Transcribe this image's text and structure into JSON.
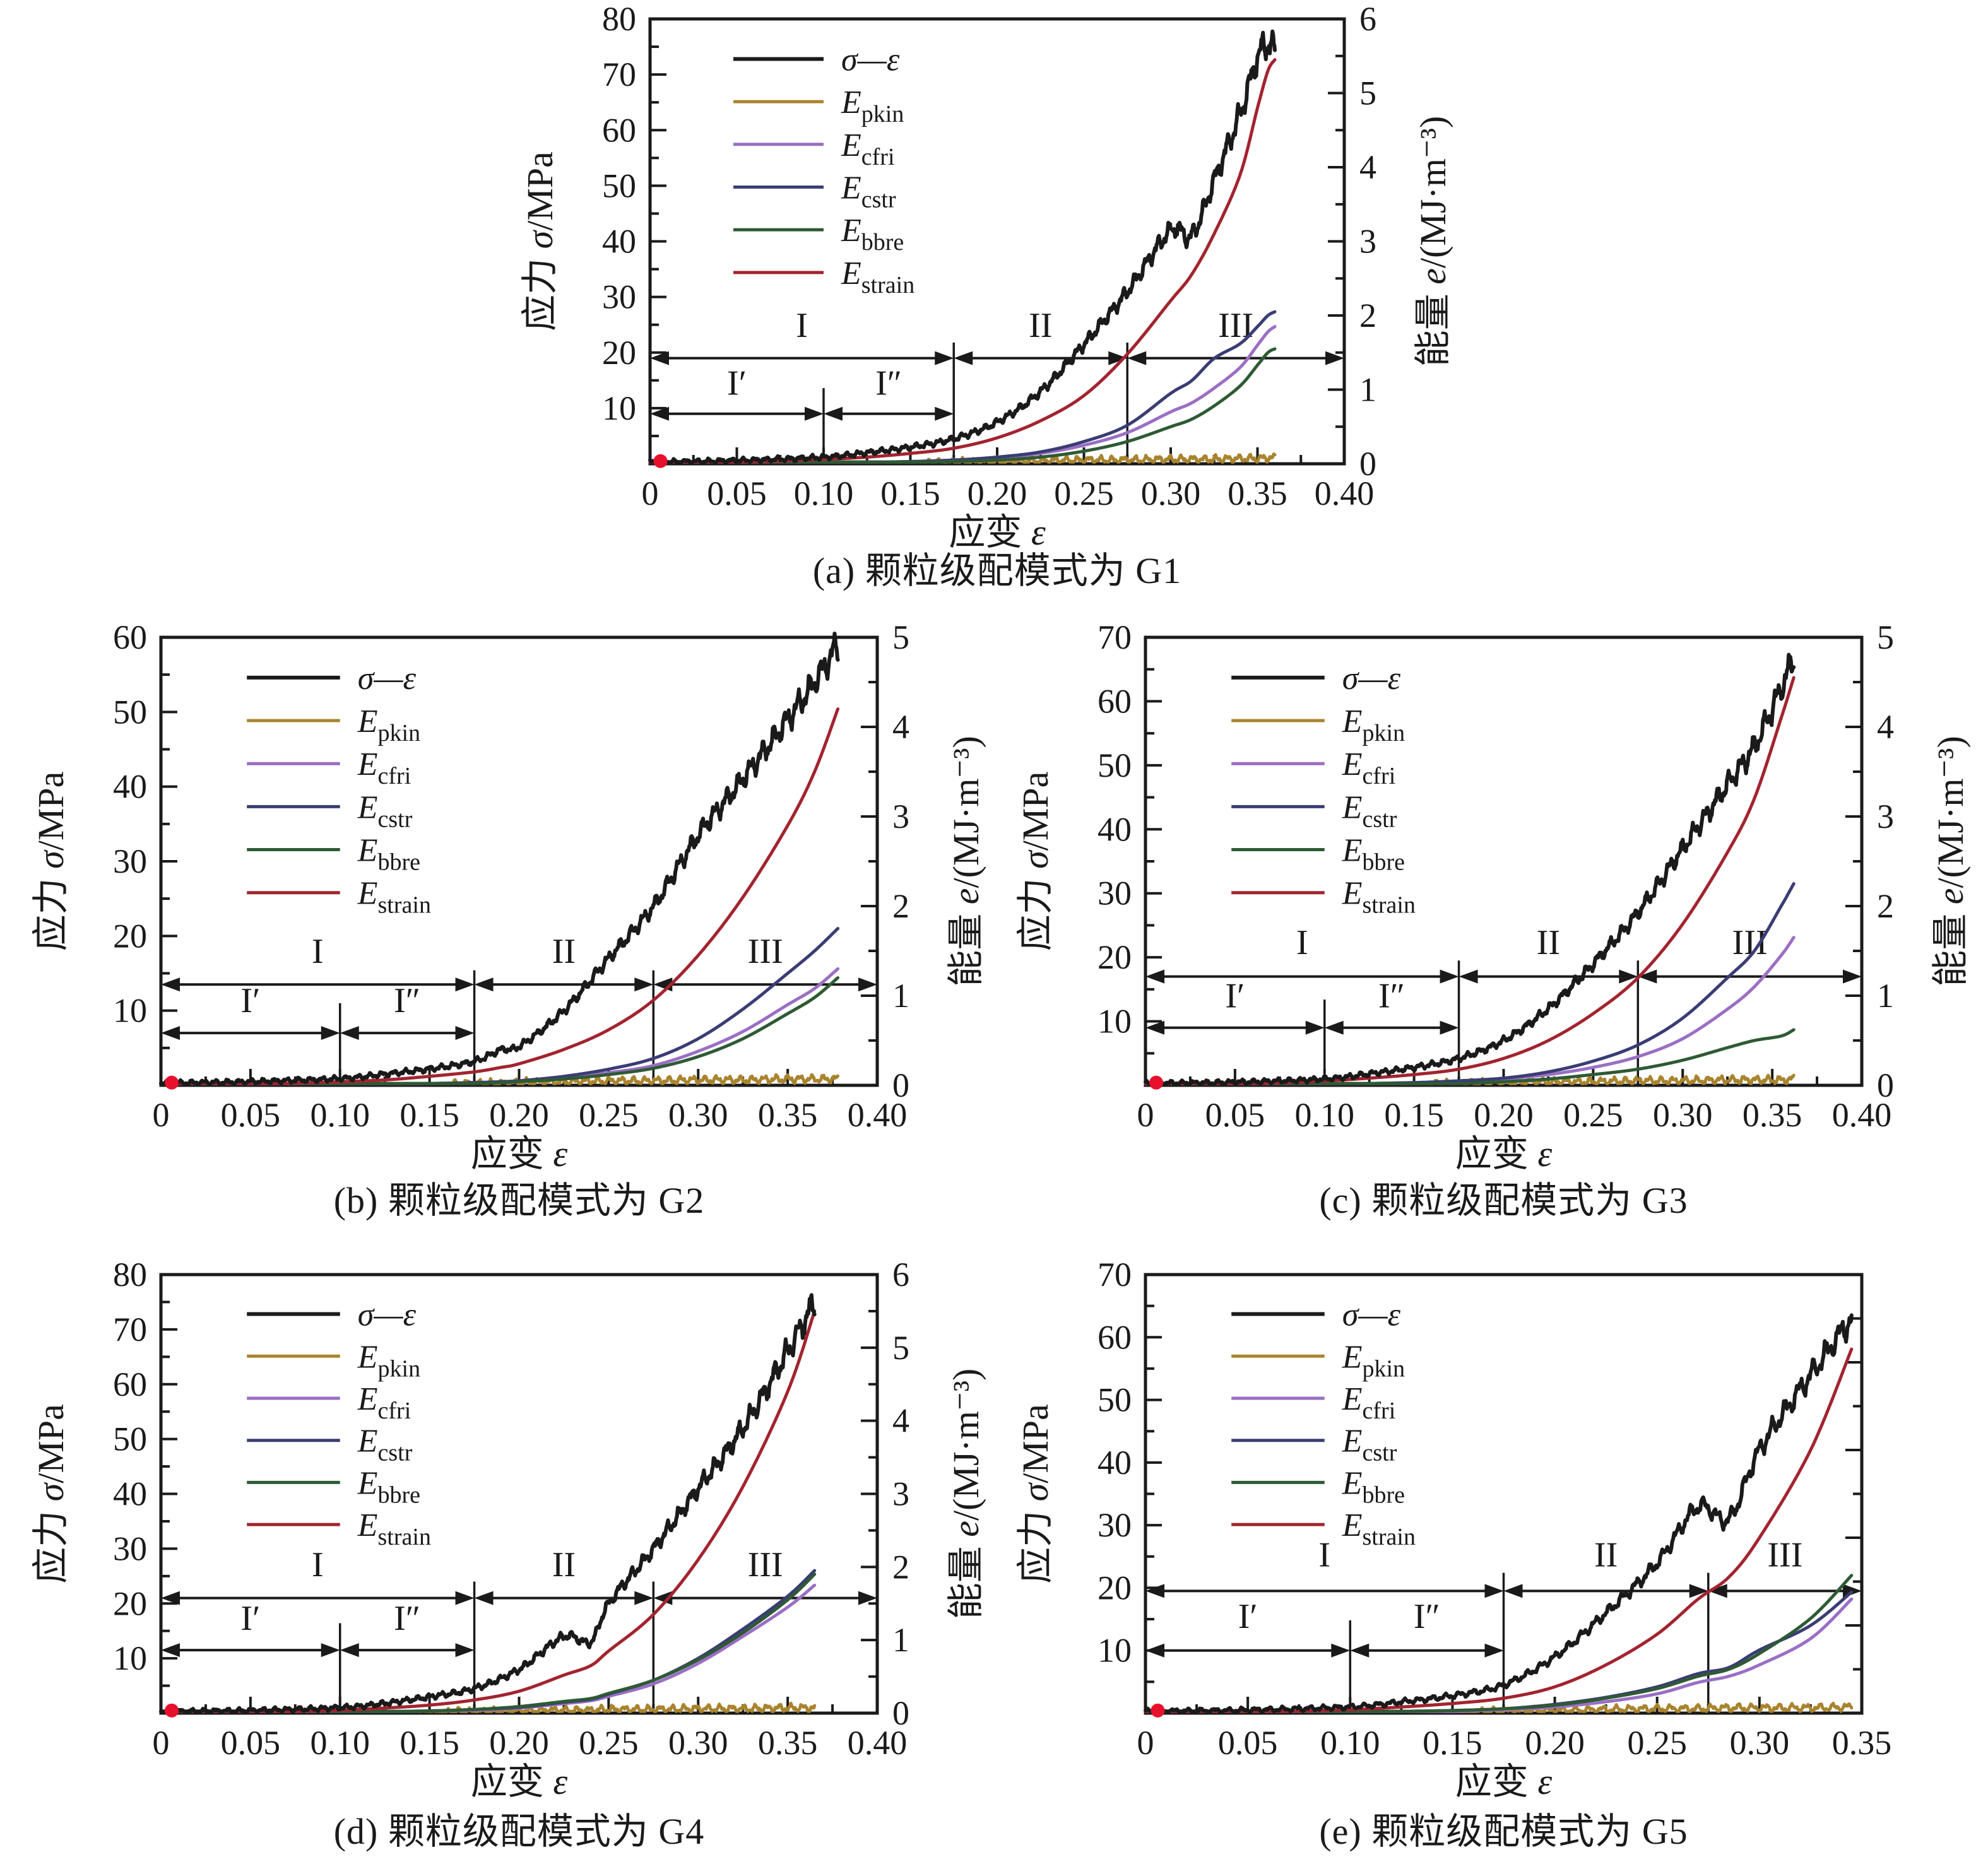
{
  "figure": {
    "colors": {
      "sigma": "#1a1a1a",
      "E_pkin": "#a9842e",
      "E_cfri": "#9a6fc4",
      "E_cstr": "#3a3d74",
      "E_bbre": "#2e5a34",
      "E_strain": "#a2242f",
      "start_dot": "#e8112d",
      "axis": "#1a1a1a"
    },
    "legend": [
      {
        "name": "sigma-epsilon",
        "label": "σ—ε",
        "sub": "",
        "color_key": "sigma"
      },
      {
        "name": "E-pkin",
        "label": "E",
        "sub": "pkin",
        "color_key": "E_pkin"
      },
      {
        "name": "E-cfri",
        "label": "E",
        "sub": "cfri",
        "color_key": "E_cfri"
      },
      {
        "name": "E-cstr",
        "label": "E",
        "sub": "cstr",
        "color_key": "E_cstr"
      },
      {
        "name": "E-bbre",
        "label": "E",
        "sub": "bbre",
        "color_key": "E_bbre"
      },
      {
        "name": "E-strain",
        "label": "E",
        "sub": "strain",
        "color_key": "E_strain"
      }
    ]
  },
  "chart_data": [
    {
      "panel": "a",
      "type": "line",
      "caption": "(a) 颗粒级配模式为 G1",
      "x_label": "应变 ε",
      "y_left_label": "应力 σ/MPa",
      "y_right_label": "能量 e/(MJ·m⁻³)",
      "x_range": [
        0,
        0.4
      ],
      "x_tick_step": 0.05,
      "y_left_range": [
        0,
        80
      ],
      "y_left_tick_step": 10,
      "y_right_range": [
        0,
        6
      ],
      "y_right_tick_step": 1,
      "y_right_labeled": true,
      "regions": {
        "labels": [
          "I",
          "II",
          "III"
        ],
        "sub_labels": [
          "I′",
          "I″"
        ],
        "boundaries": [
          0.175,
          0.275
        ],
        "sub_boundary": 0.1,
        "arrow_y": 19,
        "label_y": 22.8,
        "sub_arrow_y": 9,
        "sub_label_y": 12.4
      },
      "series": {
        "x": [
          0,
          0.05,
          0.1,
          0.125,
          0.15,
          0.175,
          0.2,
          0.225,
          0.25,
          0.275,
          0.3,
          0.312,
          0.325,
          0.34,
          0.35,
          0.356,
          0.36
        ],
        "sigma": [
          0.3,
          0.6,
          1.2,
          2.0,
          3.0,
          4.5,
          7.5,
          13,
          21.5,
          31,
          42,
          41,
          51,
          63,
          73,
          75.5,
          74
        ],
        "E_strain": [
          0,
          0.02,
          0.06,
          0.09,
          0.14,
          0.21,
          0.35,
          0.58,
          0.92,
          1.48,
          2.2,
          2.55,
          3.1,
          3.9,
          4.8,
          5.3,
          5.45
        ],
        "E_cstr": [
          0,
          0,
          0.01,
          0.02,
          0.03,
          0.05,
          0.09,
          0.16,
          0.3,
          0.52,
          0.95,
          1.12,
          1.42,
          1.62,
          1.85,
          2.0,
          2.05
        ],
        "E_cfri": [
          0,
          0,
          0.01,
          0.02,
          0.03,
          0.05,
          0.08,
          0.14,
          0.25,
          0.42,
          0.7,
          0.82,
          1.02,
          1.3,
          1.6,
          1.78,
          1.85
        ],
        "E_bbre": [
          0,
          0,
          0,
          0.01,
          0.02,
          0.03,
          0.05,
          0.09,
          0.17,
          0.3,
          0.5,
          0.6,
          0.78,
          1.05,
          1.33,
          1.5,
          1.55
        ],
        "E_pkin": [
          0,
          0,
          0.01,
          0.01,
          0.02,
          0.02,
          0.03,
          0.04,
          0.05,
          0.05,
          0.06,
          0.06,
          0.06,
          0.07,
          0.07,
          0.08,
          0.08
        ]
      }
    },
    {
      "panel": "b",
      "type": "line",
      "caption": "(b) 颗粒级配模式为 G2",
      "x_label": "应变 ε",
      "y_left_label": "应力 σ/MPa",
      "y_right_label": "能量 e/(MJ·m⁻³)",
      "x_range": [
        0,
        0.4
      ],
      "x_tick_step": 0.05,
      "y_left_range": [
        0,
        60
      ],
      "y_left_tick_step": 10,
      "y_right_range": [
        0,
        5
      ],
      "y_right_tick_step": 1,
      "y_right_labeled": true,
      "regions": {
        "labels": [
          "I",
          "II",
          "III"
        ],
        "sub_labels": [
          "I′",
          "I″"
        ],
        "boundaries": [
          0.175,
          0.275
        ],
        "sub_boundary": 0.1,
        "arrow_y": 13.5,
        "label_y": 16.4,
        "sub_arrow_y": 7,
        "sub_label_y": 9.8
      },
      "series": {
        "x": [
          0,
          0.05,
          0.1,
          0.125,
          0.15,
          0.175,
          0.19,
          0.2,
          0.225,
          0.25,
          0.275,
          0.3,
          0.325,
          0.35,
          0.365,
          0.378
        ],
        "sigma": [
          0.3,
          0.5,
          0.9,
          1.5,
          2.2,
          3.2,
          4.8,
          5.2,
          10,
          17,
          24,
          33.5,
          41,
          49,
          54,
          59
        ],
        "E_strain": [
          0,
          0.01,
          0.04,
          0.06,
          0.1,
          0.15,
          0.2,
          0.24,
          0.4,
          0.62,
          0.95,
          1.45,
          2.1,
          2.9,
          3.5,
          4.2
        ],
        "E_cstr": [
          0,
          0,
          0.01,
          0.01,
          0.02,
          0.03,
          0.04,
          0.05,
          0.1,
          0.18,
          0.3,
          0.52,
          0.85,
          1.25,
          1.5,
          1.75
        ],
        "E_cfri": [
          0,
          0,
          0.01,
          0.01,
          0.02,
          0.03,
          0.04,
          0.05,
          0.08,
          0.14,
          0.22,
          0.38,
          0.6,
          0.9,
          1.08,
          1.3
        ],
        "E_bbre": [
          0,
          0,
          0,
          0.01,
          0.01,
          0.02,
          0.03,
          0.04,
          0.07,
          0.12,
          0.19,
          0.32,
          0.52,
          0.8,
          0.98,
          1.2
        ],
        "E_pkin": [
          0,
          0,
          0,
          0.01,
          0.01,
          0.02,
          0.02,
          0.03,
          0.04,
          0.05,
          0.05,
          0.06,
          0.06,
          0.07,
          0.07,
          0.07
        ]
      }
    },
    {
      "panel": "c",
      "type": "line",
      "caption": "(c) 颗粒级配模式为 G3",
      "x_label": "应变 ε",
      "y_left_label": "应力 σ/MPa",
      "y_right_label": "能量 e/(MJ·m⁻³)",
      "x_range": [
        0,
        0.4
      ],
      "x_tick_step": 0.05,
      "y_left_range": [
        0,
        70
      ],
      "y_left_tick_step": 10,
      "y_right_range": [
        0,
        5
      ],
      "y_right_tick_step": 1,
      "y_right_labeled": true,
      "regions": {
        "labels": [
          "I",
          "II",
          "III"
        ],
        "sub_labels": [
          "I′",
          "I″"
        ],
        "boundaries": [
          0.175,
          0.275
        ],
        "sub_boundary": 0.1,
        "arrow_y": 17,
        "label_y": 20.5,
        "sub_arrow_y": 9,
        "sub_label_y": 12.2
      },
      "series": {
        "x": [
          0,
          0.05,
          0.1,
          0.125,
          0.15,
          0.175,
          0.2,
          0.225,
          0.25,
          0.275,
          0.3,
          0.325,
          0.34,
          0.355,
          0.362
        ],
        "sigma": [
          0.3,
          0.5,
          1.0,
          1.8,
          2.8,
          4.2,
          7,
          12,
          19,
          27,
          37,
          47,
          53,
          62,
          67
        ],
        "E_strain": [
          0,
          0.01,
          0.05,
          0.08,
          0.12,
          0.18,
          0.3,
          0.5,
          0.8,
          1.2,
          1.8,
          2.6,
          3.2,
          4.1,
          4.55
        ],
        "E_cstr": [
          0,
          0,
          0.01,
          0.02,
          0.03,
          0.05,
          0.08,
          0.15,
          0.27,
          0.45,
          0.75,
          1.2,
          1.5,
          2.0,
          2.25
        ],
        "E_cfri": [
          0,
          0,
          0.01,
          0.02,
          0.03,
          0.04,
          0.07,
          0.12,
          0.2,
          0.32,
          0.52,
          0.85,
          1.1,
          1.45,
          1.65
        ],
        "E_bbre": [
          0,
          0,
          0,
          0.01,
          0.01,
          0.02,
          0.04,
          0.07,
          0.12,
          0.18,
          0.28,
          0.42,
          0.5,
          0.55,
          0.62
        ],
        "E_pkin": [
          0,
          0,
          0,
          0.01,
          0.01,
          0.02,
          0.03,
          0.04,
          0.04,
          0.05,
          0.05,
          0.06,
          0.06,
          0.06,
          0.07
        ]
      }
    },
    {
      "panel": "d",
      "type": "line",
      "caption": "(d) 颗粒级配模式为 G4",
      "x_label": "应变 ε",
      "y_left_label": "应力 σ/MPa",
      "y_right_label": "能量 e/(MJ·m⁻³)",
      "x_range": [
        0,
        0.4
      ],
      "x_tick_step": 0.05,
      "y_left_range": [
        0,
        80
      ],
      "y_left_tick_step": 10,
      "y_right_range": [
        0,
        6
      ],
      "y_right_tick_step": 1,
      "y_right_labeled": true,
      "regions": {
        "labels": [
          "I",
          "II",
          "III"
        ],
        "sub_labels": [
          "I′",
          "I″"
        ],
        "boundaries": [
          0.175,
          0.275
        ],
        "sub_boundary": 0.1,
        "arrow_y": 21,
        "label_y": 25,
        "sub_arrow_y": 11.5,
        "sub_label_y": 15.2
      },
      "series": {
        "x": [
          0,
          0.05,
          0.1,
          0.125,
          0.15,
          0.175,
          0.2,
          0.225,
          0.24,
          0.25,
          0.275,
          0.3,
          0.325,
          0.35,
          0.365
        ],
        "sigma": [
          0.3,
          0.5,
          1.0,
          1.8,
          3.0,
          4.5,
          8,
          14,
          13,
          20,
          30,
          41,
          52,
          66,
          75
        ],
        "E_strain": [
          0,
          0.01,
          0.04,
          0.07,
          0.11,
          0.18,
          0.3,
          0.52,
          0.65,
          0.85,
          1.35,
          2.1,
          3.1,
          4.4,
          5.5
        ],
        "E_cstr": [
          0,
          0,
          0.01,
          0.02,
          0.03,
          0.05,
          0.08,
          0.15,
          0.19,
          0.26,
          0.45,
          0.75,
          1.15,
          1.6,
          1.95
        ],
        "E_bbre": [
          0,
          0,
          0.01,
          0.02,
          0.03,
          0.05,
          0.09,
          0.16,
          0.2,
          0.27,
          0.45,
          0.73,
          1.1,
          1.55,
          1.9
        ],
        "E_cfri": [
          0,
          0,
          0.01,
          0.02,
          0.03,
          0.04,
          0.07,
          0.13,
          0.17,
          0.23,
          0.4,
          0.68,
          1.05,
          1.45,
          1.75
        ],
        "E_pkin": [
          0,
          0,
          0.01,
          0.01,
          0.02,
          0.02,
          0.03,
          0.04,
          0.04,
          0.05,
          0.05,
          0.06,
          0.06,
          0.07,
          0.07
        ]
      }
    },
    {
      "panel": "e",
      "type": "line",
      "caption": "(e) 颗粒级配模式为 G5",
      "x_label": "应变 ε",
      "y_left_label": "应力 σ/MPa",
      "y_right_label": "",
      "x_range": [
        0,
        0.35
      ],
      "x_tick_step": 0.05,
      "y_left_range": [
        0,
        70
      ],
      "y_left_tick_step": 10,
      "y_right_range": [
        0,
        5
      ],
      "y_right_tick_step": 1,
      "y_right_labeled": false,
      "regions": {
        "labels": [
          "I",
          "II",
          "III"
        ],
        "sub_labels": [
          "I′",
          "I″"
        ],
        "boundaries": [
          0.175,
          0.275
        ],
        "sub_boundary": 0.1,
        "arrow_y": 19.5,
        "label_y": 23.4,
        "sub_arrow_y": 10,
        "sub_label_y": 13.6
      },
      "series": {
        "x": [
          0,
          0.05,
          0.1,
          0.125,
          0.15,
          0.175,
          0.2,
          0.225,
          0.25,
          0.27,
          0.285,
          0.3,
          0.325,
          0.345
        ],
        "sigma": [
          0.3,
          0.5,
          1.0,
          1.8,
          2.8,
          4.5,
          9,
          16,
          24,
          33,
          31,
          42,
          54,
          63
        ],
        "E_strain": [
          0,
          0.01,
          0.04,
          0.07,
          0.11,
          0.17,
          0.3,
          0.55,
          0.9,
          1.3,
          1.55,
          2.0,
          3.0,
          4.15
        ],
        "E_cstr": [
          0,
          0,
          0.01,
          0.02,
          0.03,
          0.05,
          0.1,
          0.18,
          0.3,
          0.45,
          0.52,
          0.72,
          1.0,
          1.38
        ],
        "E_bbre": [
          0,
          0,
          0.01,
          0.02,
          0.03,
          0.05,
          0.09,
          0.17,
          0.28,
          0.42,
          0.5,
          0.68,
          1.08,
          1.57
        ],
        "E_cfri": [
          0,
          0,
          0.01,
          0.01,
          0.02,
          0.04,
          0.07,
          0.13,
          0.22,
          0.35,
          0.42,
          0.55,
          0.85,
          1.3
        ],
        "E_pkin": [
          0,
          0,
          0,
          0.01,
          0.01,
          0.02,
          0.03,
          0.04,
          0.05,
          0.05,
          0.06,
          0.06,
          0.06,
          0.07
        ]
      }
    }
  ]
}
